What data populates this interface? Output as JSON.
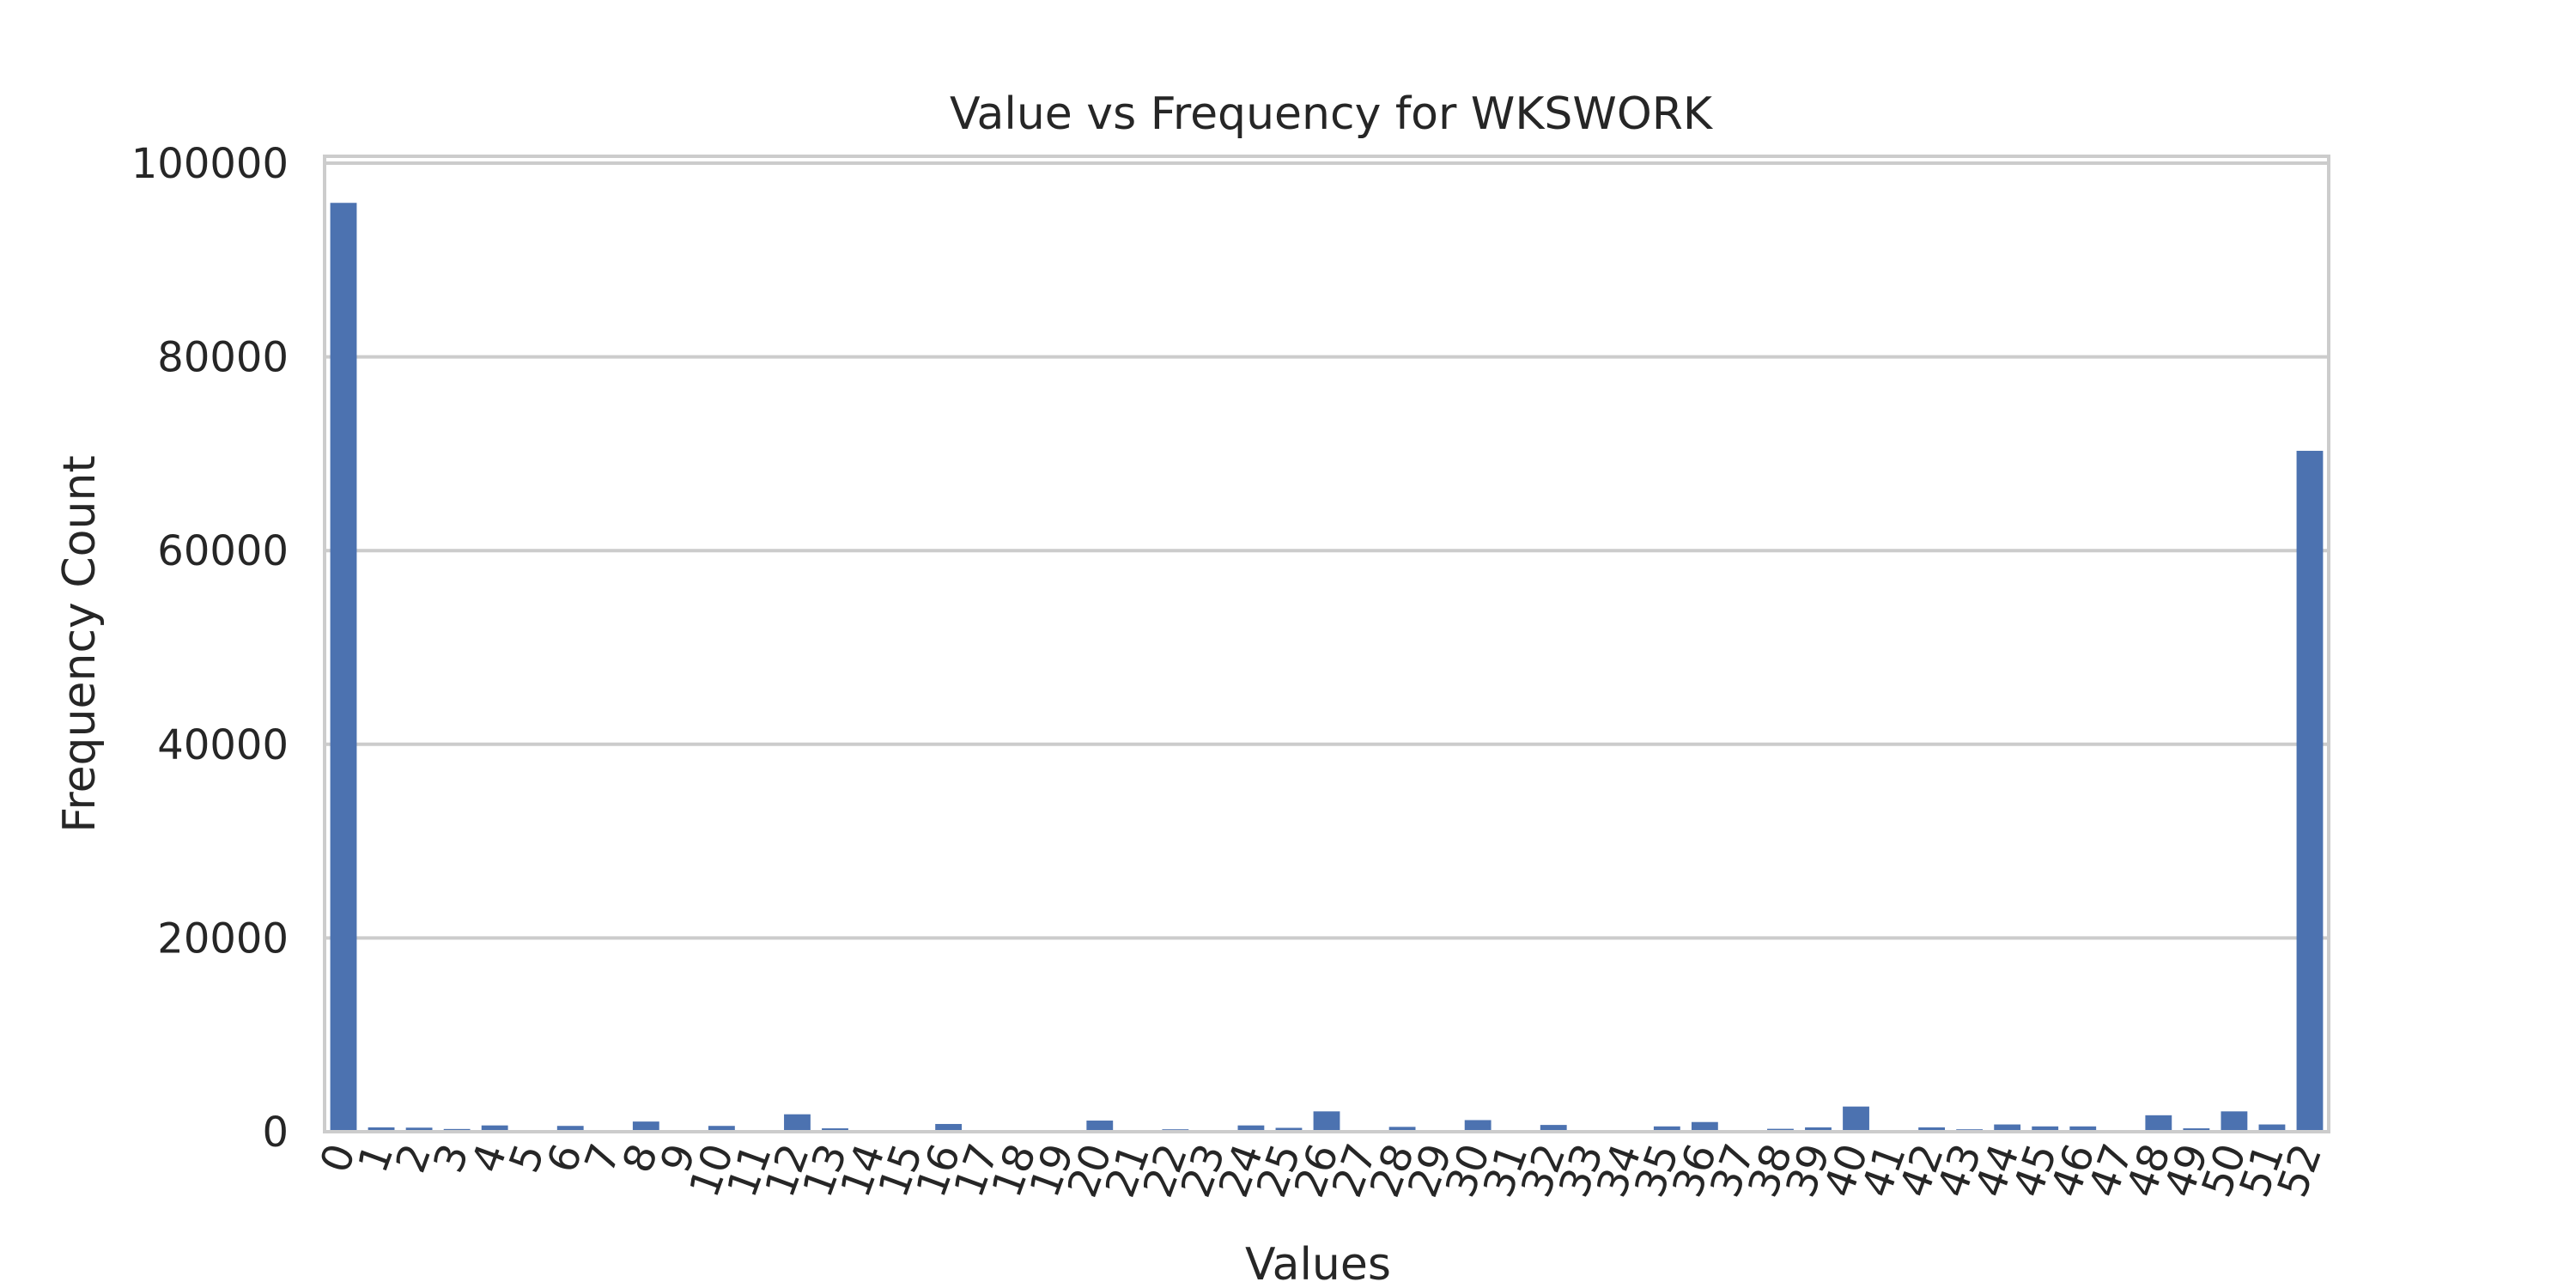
{
  "chart_data": {
    "type": "bar",
    "title": "Value vs Frequency for WKSWORK",
    "xlabel": "Values",
    "ylabel": "Frequency Count",
    "categories": [
      "0",
      "1",
      "2",
      "3",
      "4",
      "5",
      "6",
      "7",
      "8",
      "9",
      "10",
      "11",
      "12",
      "13",
      "14",
      "15",
      "16",
      "17",
      "18",
      "19",
      "20",
      "21",
      "22",
      "23",
      "24",
      "25",
      "26",
      "27",
      "28",
      "29",
      "30",
      "31",
      "32",
      "33",
      "34",
      "35",
      "36",
      "37",
      "38",
      "39",
      "40",
      "41",
      "42",
      "43",
      "44",
      "45",
      "46",
      "47",
      "48",
      "49",
      "50",
      "51",
      "52"
    ],
    "values": [
      95900,
      450,
      420,
      280,
      650,
      150,
      600,
      120,
      1050,
      130,
      600,
      100,
      1800,
      350,
      120,
      120,
      800,
      80,
      60,
      50,
      1150,
      100,
      250,
      90,
      650,
      400,
      2100,
      100,
      500,
      90,
      1200,
      80,
      700,
      60,
      50,
      550,
      1000,
      90,
      300,
      450,
      2600,
      100,
      450,
      250,
      750,
      550,
      550,
      90,
      1700,
      350,
      2100,
      750,
      70300
    ],
    "ylim": [
      0,
      100000
    ],
    "y_ticks": [
      0,
      20000,
      40000,
      60000,
      80000,
      100000
    ],
    "grid": true,
    "bar_color": "#4c72b0",
    "grid_color": "#cccccc",
    "background": "#ffffff"
  }
}
